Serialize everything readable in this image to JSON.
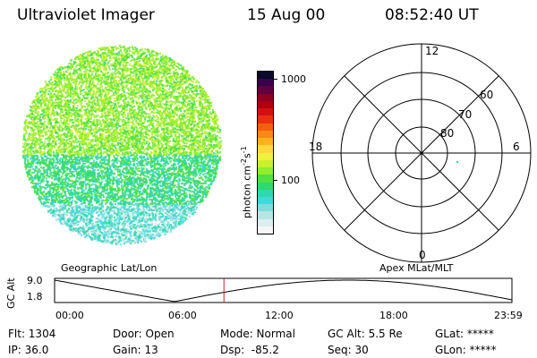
{
  "header": {
    "instrument": "Ultraviolet Imager",
    "date": "15 Aug 00",
    "time": "08:52:40 UT"
  },
  "colorbar": {
    "label": "photon cm",
    "label_sup1": "-2",
    "label_mid": "s",
    "label_sup2": "-1",
    "tick_high": "1000",
    "tick_low": "100",
    "colors": [
      "#0a0a2a",
      "#3a004a",
      "#600040",
      "#8c0020",
      "#b00010",
      "#d21010",
      "#e63010",
      "#f06010",
      "#f88818",
      "#ffb020",
      "#ffd840",
      "#f0f040",
      "#c8f030",
      "#90ee30",
      "#50e040",
      "#30d870",
      "#30d8b0",
      "#40d8d8",
      "#80dcdc",
      "#b8e4e4",
      "#dceeee",
      "#f6f6f6"
    ]
  },
  "polar": {
    "label_12": "12",
    "label_6": "6",
    "label_18": "18",
    "label_0": "0",
    "label_60": "60",
    "label_70": "70",
    "label_80": "80"
  },
  "timeline": {
    "left_label": "Geographic Lat/Lon",
    "right_label": "Apex  MLat/MLT",
    "axis_title": "GC Alt",
    "y_tick_top": "9.0",
    "y_tick_bottom": "1.8",
    "x_ticks": [
      "00:00",
      "06:00",
      "12:00",
      "18:00",
      "23:59"
    ],
    "current_time_hours": 8.88,
    "marker_color": "#cc2020"
  },
  "status": {
    "flt": "Flt: 1304",
    "ip": "IP: 36.0",
    "door": "Door: Open",
    "gain": "Gain: 13",
    "mode": "Mode: Normal",
    "dsp": "Dsp:  -85.2",
    "gcalt": "GC Alt: 5.5 Re",
    "seq": "Seq: 30",
    "glat": "GLat: *****",
    "glon": "GLon: *****"
  }
}
